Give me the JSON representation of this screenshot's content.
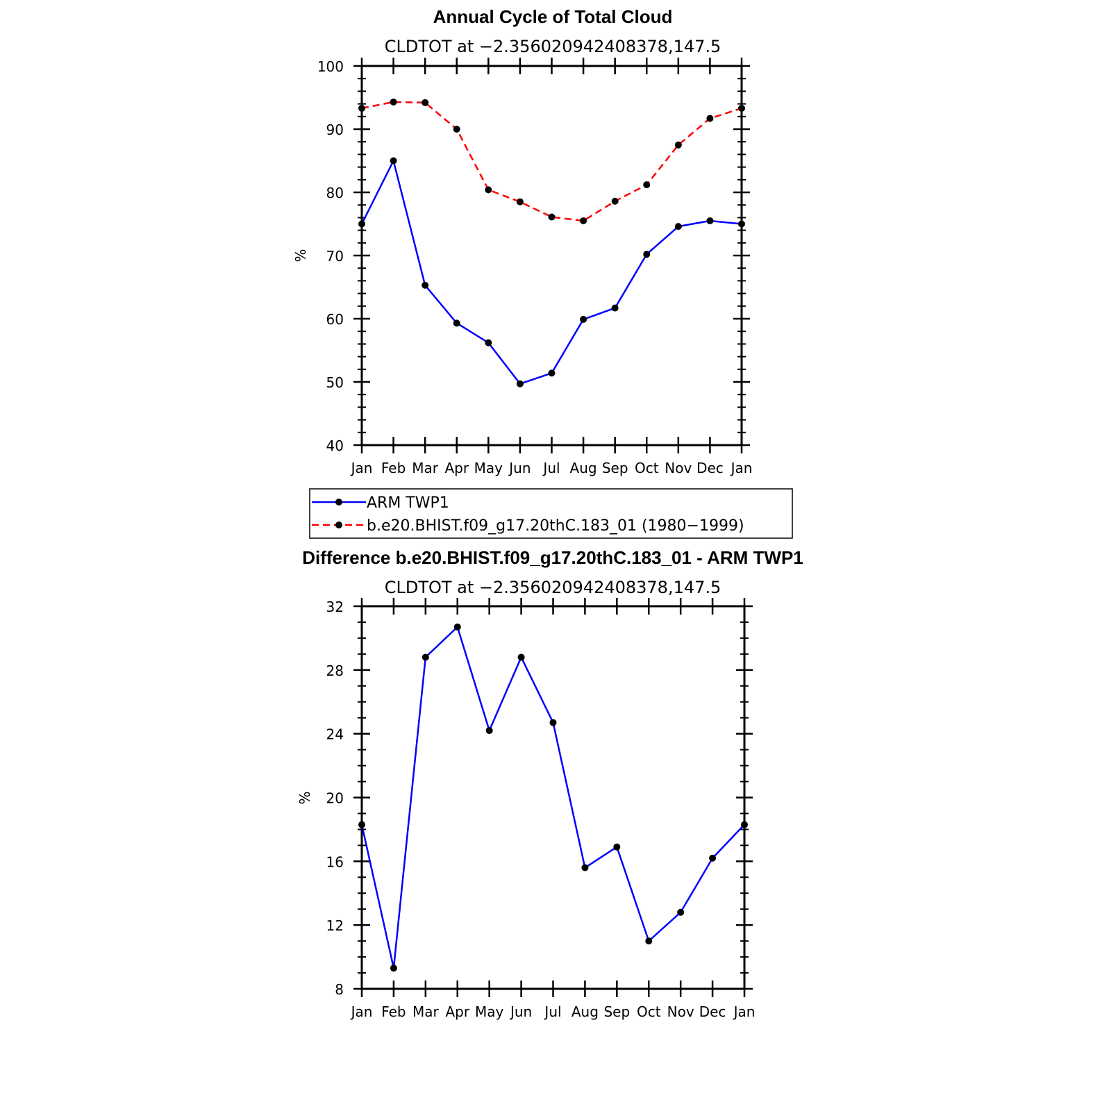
{
  "chart_data": [
    {
      "type": "line",
      "title": "Annual Cycle of Total Cloud",
      "subtitle": "CLDTOT at −2.356020942408378,147.5",
      "ylabel": "%",
      "ylim": [
        40,
        100
      ],
      "yticks": [
        "100",
        "90",
        "80",
        "70",
        "60",
        "50",
        "40"
      ],
      "ytick_values": [
        100,
        90,
        80,
        70,
        60,
        50,
        40
      ],
      "categories": [
        "Jan",
        "Feb",
        "Mar",
        "Apr",
        "May",
        "Jun",
        "Jul",
        "Aug",
        "Sep",
        "Oct",
        "Nov",
        "Dec",
        "Jan"
      ],
      "series": [
        {
          "name": "ARM TWP1",
          "color": "#0000ff",
          "dash": "solid",
          "values": [
            75.0,
            85.0,
            65.3,
            59.3,
            56.2,
            49.7,
            51.4,
            59.9,
            61.7,
            70.2,
            74.6,
            75.5,
            75.0
          ]
        },
        {
          "name": "b.e20.BHIST.f09_g17.20thC.183_01 (1980−1999)",
          "color": "#ff0000",
          "dash": "dashed",
          "values": [
            93.3,
            94.3,
            94.2,
            90.0,
            80.4,
            78.5,
            76.1,
            75.5,
            78.6,
            81.2,
            87.5,
            91.7,
            93.3
          ]
        }
      ],
      "grid": false,
      "legend": "below"
    },
    {
      "type": "line",
      "title": "Difference b.e20.BHIST.f09_g17.20thC.183_01 - ARM TWP1",
      "subtitle": "CLDTOT at −2.356020942408378,147.5",
      "ylabel": "%",
      "ylim": [
        8,
        32
      ],
      "yticks": [
        "32",
        "28",
        "24",
        "20",
        "16",
        "12",
        "8"
      ],
      "ytick_values": [
        32,
        28,
        24,
        20,
        16,
        12,
        8
      ],
      "categories": [
        "Jan",
        "Feb",
        "Mar",
        "Apr",
        "May",
        "Jun",
        "Jul",
        "Aug",
        "Sep",
        "Oct",
        "Nov",
        "Dec",
        "Jan"
      ],
      "series": [
        {
          "color": "#0000ff",
          "dash": "solid",
          "values": [
            18.3,
            9.3,
            28.8,
            30.7,
            24.2,
            28.8,
            24.7,
            15.6,
            16.9,
            11.0,
            12.8,
            16.2,
            18.3
          ]
        }
      ],
      "grid": false
    }
  ],
  "legend": {
    "items": [
      "ARM TWP1",
      "b.e20.BHIST.f09_g17.20thC.183_01 (1980−1999)"
    ]
  }
}
